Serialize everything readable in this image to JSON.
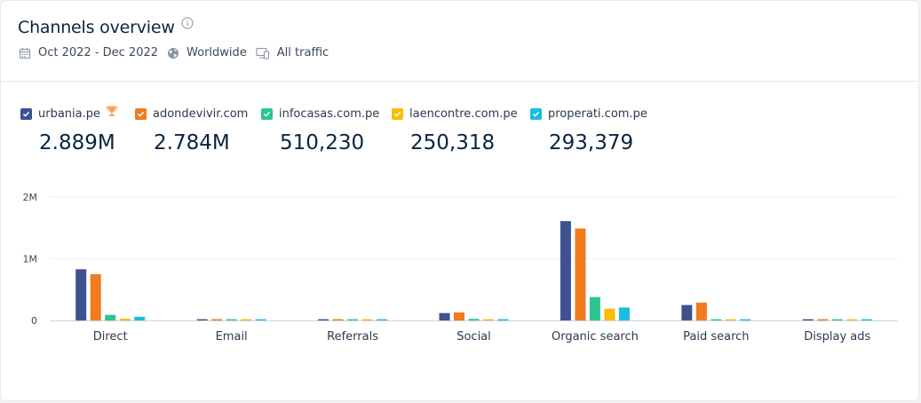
{
  "header": {
    "title": "Channels overview",
    "date_range": "Oct 2022 - Dec 2022",
    "region": "Worldwide",
    "traffic": "All traffic"
  },
  "legend": [
    {
      "name": "urbania.pe",
      "total": "2.889M",
      "color": "#3e5290",
      "winner": true
    },
    {
      "name": "adondevivir.com",
      "total": "2.784M",
      "color": "#f27a1f",
      "winner": false
    },
    {
      "name": "infocasas.com.pe",
      "total": "510,230",
      "color": "#2cc592",
      "winner": false
    },
    {
      "name": "laencontre.com.pe",
      "total": "250,318",
      "color": "#fbbc05",
      "winner": false
    },
    {
      "name": "properati.com.pe",
      "total": "293,379",
      "color": "#1bbce0",
      "winner": false
    }
  ],
  "chart_data": {
    "type": "bar",
    "categories": [
      "Direct",
      "Email",
      "Referrals",
      "Social",
      "Organic search",
      "Paid search",
      "Display ads"
    ],
    "series": [
      {
        "name": "urbania.pe",
        "values": [
          830000,
          20000,
          20000,
          120000,
          1610000,
          250000,
          20000
        ]
      },
      {
        "name": "adondevivir.com",
        "values": [
          750000,
          20000,
          20000,
          130000,
          1490000,
          290000,
          20000
        ]
      },
      {
        "name": "infocasas.com.pe",
        "values": [
          90000,
          20000,
          20000,
          25000,
          380000,
          20000,
          20000
        ]
      },
      {
        "name": "laencontre.com.pe",
        "values": [
          30000,
          20000,
          20000,
          20000,
          190000,
          20000,
          20000
        ]
      },
      {
        "name": "properati.com.pe",
        "values": [
          60000,
          20000,
          20000,
          20000,
          210000,
          20000,
          20000
        ]
      }
    ],
    "yticks": [
      "0",
      "1M",
      "2M"
    ],
    "ylim": [
      0,
      2000000
    ],
    "grid": true
  }
}
